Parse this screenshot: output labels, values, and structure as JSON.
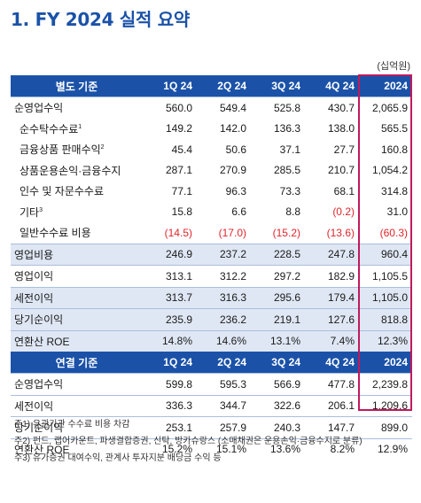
{
  "title": "1. FY 2024 실적 요약",
  "unit": "(십억원)",
  "standalone": {
    "header": [
      "별도 기준",
      "1Q 24",
      "2Q 24",
      "3Q 24",
      "4Q 24",
      "2024"
    ],
    "rows": [
      {
        "label": "순영업수익",
        "sup": "",
        "type": "main",
        "values": [
          "560.0",
          "549.4",
          "525.8",
          "430.7",
          "2,065.9"
        ]
      },
      {
        "label": "순수탁수수료",
        "sup": "1",
        "type": "sub",
        "values": [
          "149.2",
          "142.0",
          "136.3",
          "138.0",
          "565.5"
        ]
      },
      {
        "label": "금융상품 판매수익",
        "sup": "2",
        "type": "sub",
        "values": [
          "45.4",
          "50.6",
          "37.1",
          "27.7",
          "160.8"
        ]
      },
      {
        "label": "상품운용손익·금융수지",
        "sup": "",
        "type": "sub",
        "values": [
          "287.1",
          "270.9",
          "285.5",
          "210.7",
          "1,054.2"
        ]
      },
      {
        "label": "인수 및 자문수수료",
        "sup": "",
        "type": "sub",
        "values": [
          "77.1",
          "96.3",
          "73.3",
          "68.1",
          "314.8"
        ]
      },
      {
        "label": "기타",
        "sup": "3",
        "type": "sub",
        "values": [
          "15.8",
          "6.6",
          "8.8",
          "(0.2)",
          "31.0"
        ]
      },
      {
        "label": "일반수수료 비용",
        "sup": "",
        "type": "sub",
        "values": [
          "(14.5)",
          "(17.0)",
          "(15.2)",
          "(13.6)",
          "(60.3)"
        ]
      },
      {
        "label": "영업비용",
        "sup": "",
        "type": "shade",
        "values": [
          "246.9",
          "237.2",
          "228.5",
          "247.8",
          "960.4"
        ]
      },
      {
        "label": "영업이익",
        "sup": "",
        "type": "main",
        "values": [
          "313.1",
          "312.2",
          "297.2",
          "182.9",
          "1,105.5"
        ]
      },
      {
        "label": "세전이익",
        "sup": "",
        "type": "shade",
        "values": [
          "313.7",
          "316.3",
          "295.6",
          "179.4",
          "1,105.0"
        ]
      },
      {
        "label": "당기순이익",
        "sup": "",
        "type": "shade",
        "values": [
          "235.9",
          "236.2",
          "219.1",
          "127.6",
          "818.8"
        ]
      },
      {
        "label": "연환산 ROE",
        "sup": "",
        "type": "shade",
        "values": [
          "14.8%",
          "14.6%",
          "13.1%",
          "7.4%",
          "12.3%"
        ]
      }
    ]
  },
  "consolidated": {
    "header": [
      "연결 기준",
      "1Q 24",
      "2Q 24",
      "3Q 24",
      "4Q 24",
      "2024"
    ],
    "rows": [
      {
        "label": "순영업수익",
        "sup": "",
        "type": "main",
        "values": [
          "599.8",
          "595.3",
          "566.9",
          "477.8",
          "2,239.8"
        ]
      },
      {
        "label": "세전이익",
        "sup": "",
        "type": "main",
        "values": [
          "336.3",
          "344.7",
          "322.6",
          "206.1",
          "1,209.6"
        ]
      },
      {
        "label": "당기순이익",
        "sup": "",
        "type": "main",
        "values": [
          "253.1",
          "257.9",
          "240.3",
          "147.7",
          "899.0"
        ]
      },
      {
        "label": "연환산 ROE",
        "sup": "",
        "type": "main",
        "values": [
          "15.2%",
          "15.1%",
          "13.6%",
          "8.2%",
          "12.9%"
        ]
      }
    ]
  },
  "notes": [
    "주1) 유관기관 수수료 비용 차감",
    "주2) 펀드, 랩어카운트, 파생결합증권, 신탁, 방카슈랑스 (소매채권은 운용손익·금융수지로 분류)",
    "주3) 유가증권 대여수익, 관계사 투자지분 배당금 수익 등"
  ]
}
